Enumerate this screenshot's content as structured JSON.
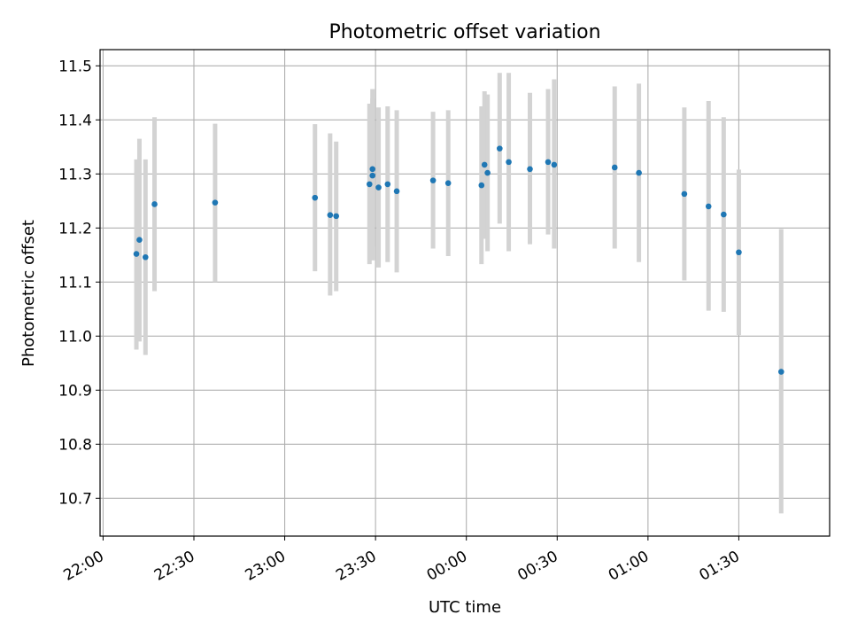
{
  "chart_data": {
    "type": "scatter",
    "title": "Photometric offset variation",
    "xlabel": "UTC time",
    "ylabel": "Photometric offset",
    "x_axis_kind": "time",
    "x_ticks": [
      "22:00",
      "22:30",
      "23:00",
      "23:30",
      "00:00",
      "00:30",
      "01:00",
      "01:30"
    ],
    "y_ticks": [
      "10.7",
      "10.8",
      "10.9",
      "11.0",
      "11.1",
      "11.2",
      "11.3",
      "11.4",
      "11.5"
    ],
    "xlim": [
      "21:59",
      "02:00"
    ],
    "ylim": [
      10.63,
      11.53
    ],
    "grid": true,
    "colors": {
      "points": "#1f77b4",
      "error_bars": "#d3d3d3",
      "grid": "#b0b0b0"
    },
    "points": [
      {
        "t": "22:11",
        "y": 11.152,
        "lo": 10.975,
        "hi": 11.327
      },
      {
        "t": "22:12",
        "y": 11.178,
        "lo": 10.99,
        "hi": 11.365
      },
      {
        "t": "22:14",
        "y": 11.146,
        "lo": 10.965,
        "hi": 11.327
      },
      {
        "t": "22:17",
        "y": 11.244,
        "lo": 11.083,
        "hi": 11.405
      },
      {
        "t": "22:37",
        "y": 11.247,
        "lo": 11.1,
        "hi": 11.393
      },
      {
        "t": "23:10",
        "y": 11.256,
        "lo": 11.12,
        "hi": 11.392
      },
      {
        "t": "23:15",
        "y": 11.224,
        "lo": 11.075,
        "hi": 11.375
      },
      {
        "t": "23:17",
        "y": 11.222,
        "lo": 11.083,
        "hi": 11.36
      },
      {
        "t": "23:28",
        "y": 11.281,
        "lo": 11.133,
        "hi": 11.43
      },
      {
        "t": "23:29",
        "y": 11.297,
        "lo": 11.14,
        "hi": 11.44
      },
      {
        "t": "23:29",
        "y": 11.309,
        "lo": 11.165,
        "hi": 11.457
      },
      {
        "t": "23:31",
        "y": 11.275,
        "lo": 11.127,
        "hi": 11.423
      },
      {
        "t": "23:34",
        "y": 11.281,
        "lo": 11.137,
        "hi": 11.425
      },
      {
        "t": "23:37",
        "y": 11.268,
        "lo": 11.118,
        "hi": 11.418
      },
      {
        "t": "23:49",
        "y": 11.288,
        "lo": 11.162,
        "hi": 11.415
      },
      {
        "t": "23:54",
        "y": 11.283,
        "lo": 11.148,
        "hi": 11.418
      },
      {
        "t": "00:05",
        "y": 11.279,
        "lo": 11.133,
        "hi": 11.425
      },
      {
        "t": "00:06",
        "y": 11.317,
        "lo": 11.18,
        "hi": 11.453
      },
      {
        "t": "00:07",
        "y": 11.302,
        "lo": 11.157,
        "hi": 11.447
      },
      {
        "t": "00:11",
        "y": 11.347,
        "lo": 11.208,
        "hi": 11.487
      },
      {
        "t": "00:14",
        "y": 11.322,
        "lo": 11.157,
        "hi": 11.487
      },
      {
        "t": "00:21",
        "y": 11.309,
        "lo": 11.17,
        "hi": 11.45
      },
      {
        "t": "00:27",
        "y": 11.322,
        "lo": 11.188,
        "hi": 11.457
      },
      {
        "t": "00:29",
        "y": 11.317,
        "lo": 11.162,
        "hi": 11.475
      },
      {
        "t": "00:49",
        "y": 11.312,
        "lo": 11.162,
        "hi": 11.462
      },
      {
        "t": "00:57",
        "y": 11.302,
        "lo": 11.137,
        "hi": 11.467
      },
      {
        "t": "01:12",
        "y": 11.263,
        "lo": 11.103,
        "hi": 11.423
      },
      {
        "t": "01:20",
        "y": 11.24,
        "lo": 11.047,
        "hi": 11.435
      },
      {
        "t": "01:25",
        "y": 11.225,
        "lo": 11.045,
        "hi": 11.405
      },
      {
        "t": "01:30",
        "y": 11.155,
        "lo": 11.002,
        "hi": 11.308
      },
      {
        "t": "01:44",
        "y": 10.934,
        "lo": 10.672,
        "hi": 11.198
      }
    ]
  }
}
